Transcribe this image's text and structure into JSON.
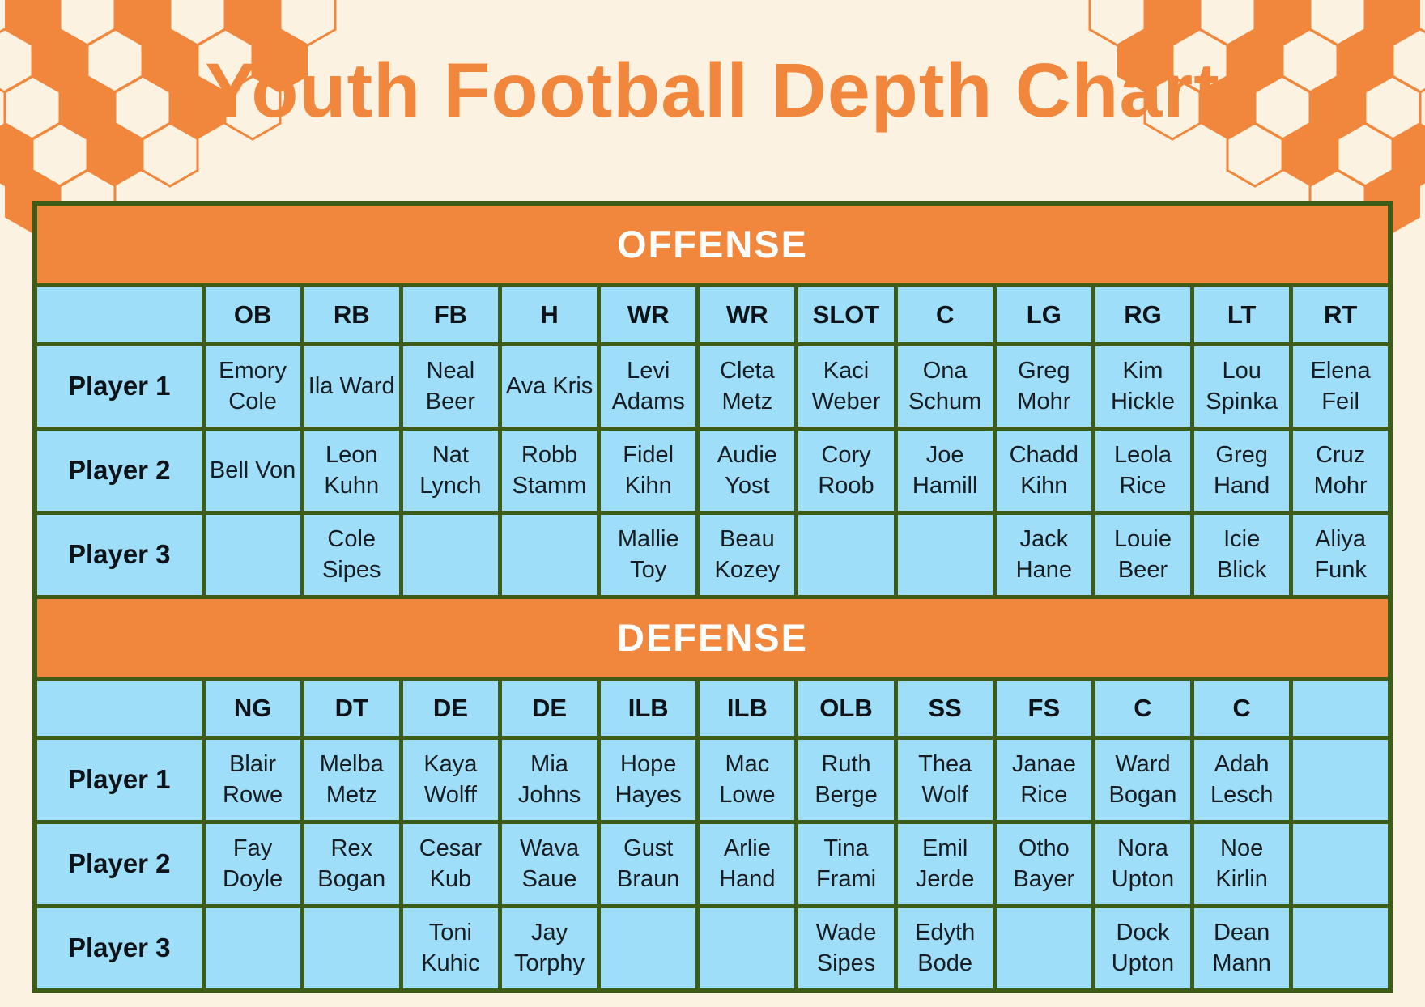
{
  "title": "Youth Football Depth Chart",
  "colors": {
    "accent_orange": "#F0873C",
    "cell_blue": "#9EDEF8",
    "border_green": "#3D5C18",
    "background_cream": "#FBF2E2",
    "section_text": "#FFFFFF"
  },
  "offense": {
    "section_label": "OFFENSE",
    "positions": [
      "OB",
      "RB",
      "FB",
      "H",
      "WR",
      "WR",
      "SLOT",
      "C",
      "LG",
      "RG",
      "LT",
      "RT"
    ],
    "rows": [
      {
        "label": "Player 1",
        "players": [
          "Emory Cole",
          "Ila Ward",
          "Neal Beer",
          "Ava Kris",
          "Levi Adams",
          "Cleta Metz",
          "Kaci Weber",
          "Ona Schum",
          "Greg Mohr",
          "Kim Hickle",
          "Lou Spinka",
          "Elena Feil"
        ]
      },
      {
        "label": "Player 2",
        "players": [
          "Bell Von",
          "Leon Kuhn",
          "Nat Lynch",
          "Robb Stamm",
          "Fidel Kihn",
          "Audie Yost",
          "Cory Roob",
          "Joe Hamill",
          "Chadd Kihn",
          "Leola Rice",
          "Greg Hand",
          "Cruz Mohr"
        ]
      },
      {
        "label": "Player 3",
        "players": [
          "",
          "Cole Sipes",
          "",
          "",
          "Mallie Toy",
          "Beau Kozey",
          "",
          "",
          "Jack Hane",
          "Louie Beer",
          "Icie Blick",
          "Aliya Funk"
        ]
      }
    ]
  },
  "defense": {
    "section_label": "DEFENSE",
    "positions": [
      "NG",
      "DT",
      "DE",
      "DE",
      "ILB",
      "ILB",
      "OLB",
      "SS",
      "FS",
      "C",
      "C",
      ""
    ],
    "rows": [
      {
        "label": "Player 1",
        "players": [
          "Blair Rowe",
          "Melba Metz",
          "Kaya Wolff",
          "Mia Johns",
          "Hope Hayes",
          "Mac Lowe",
          "Ruth Berge",
          "Thea Wolf",
          "Janae Rice",
          "Ward Bogan",
          "Adah Lesch",
          ""
        ]
      },
      {
        "label": "Player 2",
        "players": [
          "Fay Doyle",
          "Rex Bogan",
          "Cesar Kub",
          "Wava Saue",
          "Gust Braun",
          "Arlie Hand",
          "Tina Frami",
          "Emil Jerde",
          "Otho Bayer",
          "Nora Upton",
          "Noe Kirlin",
          ""
        ]
      },
      {
        "label": "Player 3",
        "players": [
          "",
          "",
          "Toni Kuhic",
          "Jay Torphy",
          "",
          "",
          "Wade Sipes",
          "Edyth Bode",
          "",
          "Dock Upton",
          "Dean Mann",
          ""
        ]
      }
    ]
  }
}
